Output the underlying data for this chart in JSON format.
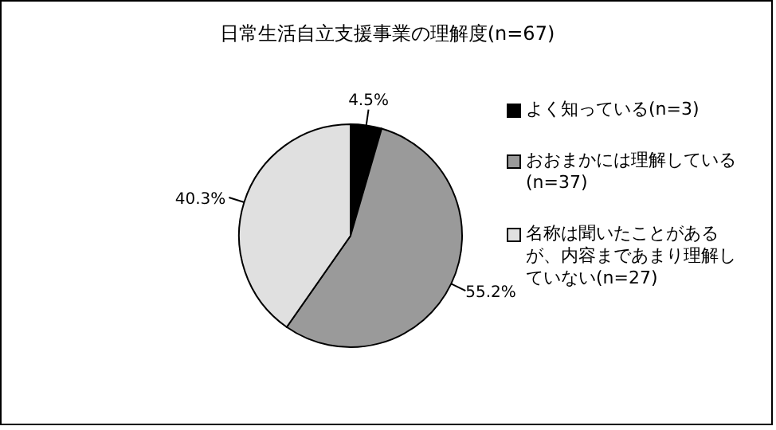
{
  "chart_data": {
    "type": "pie",
    "title": "日常生活自立支援事業の理解度(n=67)",
    "categories": [
      "よく知っている(n=3)",
      "おおまかには理解している(n=37)",
      "名称は聞いたことがあるが、内容まであまり理解していない(n=27)"
    ],
    "values": [
      4.5,
      55.2,
      40.3
    ],
    "colors": [
      "#000000",
      "#9a9a9a",
      "#e0e0e0"
    ],
    "value_labels": [
      "4.5%",
      "55.2%",
      "40.3%"
    ],
    "legend": "right"
  }
}
